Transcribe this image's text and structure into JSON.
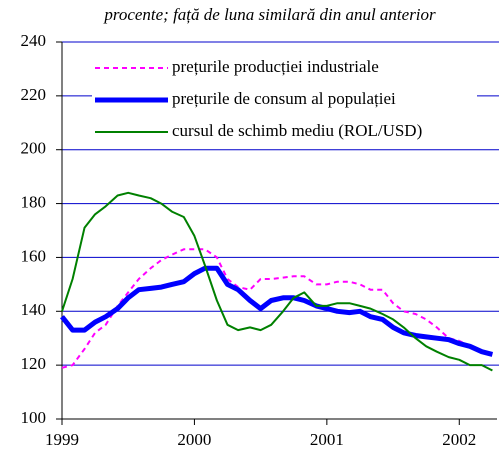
{
  "chart_data": {
    "type": "line",
    "subtitle": "procente; față de luna similară din anul anterior",
    "x": [
      1999,
      1999.08,
      1999.17,
      1999.25,
      1999.33,
      1999.42,
      1999.5,
      1999.58,
      1999.67,
      1999.75,
      1999.83,
      1999.92,
      2000,
      2000.08,
      2000.17,
      2000.25,
      2000.33,
      2000.42,
      2000.5,
      2000.58,
      2000.67,
      2000.75,
      2000.83,
      2000.92,
      2001,
      2001.08,
      2001.17,
      2001.25,
      2001.33,
      2001.42,
      2001.5,
      2001.58,
      2001.67,
      2001.75,
      2001.83,
      2001.92,
      2002,
      2002.08,
      2002.17,
      2002.25
    ],
    "series": [
      {
        "name": "prețurile producției industriale",
        "color": "#ff00ff",
        "dash": true,
        "width": 2,
        "values": [
          119,
          120,
          126,
          132,
          135,
          142,
          147,
          152,
          156,
          159,
          161,
          163,
          163,
          163,
          160,
          152,
          149,
          148,
          152,
          152,
          152.5,
          153,
          153,
          150,
          150,
          151,
          151,
          150,
          148,
          148,
          143,
          140,
          139,
          137,
          134,
          130,
          129,
          127,
          125,
          124
        ]
      },
      {
        "name": "prețurile de consum al populației",
        "color": "#0000ff",
        "dash": false,
        "width": 5,
        "values": [
          138,
          133,
          133,
          136,
          138,
          141,
          145,
          148,
          148.5,
          149,
          150,
          151,
          154,
          156,
          156,
          150,
          148,
          144,
          141,
          144,
          145,
          145,
          144,
          142,
          141,
          140,
          139.5,
          140,
          138,
          137,
          134,
          132,
          131,
          130.5,
          130,
          129.5,
          128,
          127,
          125,
          124
        ]
      },
      {
        "name": "cursul de schimb mediu (ROL/USD)",
        "color": "#008000",
        "dash": false,
        "width": 2,
        "values": [
          140,
          152,
          171,
          176,
          179,
          183,
          184,
          183,
          182,
          180,
          177,
          175,
          168,
          157,
          144,
          135,
          133,
          134,
          133,
          135,
          140,
          145,
          147,
          142,
          142,
          143,
          143,
          142,
          141,
          139,
          137,
          134,
          130,
          127,
          125,
          123,
          122,
          120,
          120,
          118
        ]
      }
    ],
    "xlim": [
      1999,
      2002.3
    ],
    "xticks": [
      1999,
      2000,
      2001,
      2002
    ],
    "ylim": [
      100,
      240
    ],
    "yticks": [
      100,
      120,
      140,
      160,
      180,
      200,
      220,
      240
    ],
    "grid": true,
    "grid_color": "#0000cc"
  }
}
